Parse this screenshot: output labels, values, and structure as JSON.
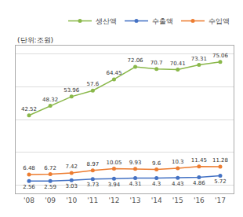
{
  "chart_data": {
    "type": "line",
    "ylabel": "(단위:조원)",
    "categories": [
      "'08",
      "'09",
      "'10",
      "'11",
      "'12",
      "'13",
      "'14",
      "'15",
      "'16",
      "'17"
    ],
    "series": [
      {
        "name": "생산액",
        "color": "#8ab84a",
        "marker": "circle",
        "values": [
          42.52,
          48.32,
          53.96,
          57.6,
          64.45,
          72.06,
          70.7,
          70.41,
          73.31,
          75.06
        ]
      },
      {
        "name": "수출액",
        "color": "#4472c4",
        "marker": "circle",
        "values": [
          2.56,
          2.59,
          3.03,
          3.73,
          3.94,
          4.31,
          4.3,
          4.43,
          4.86,
          5.72
        ]
      },
      {
        "name": "수입액",
        "color": "#ed7d31",
        "marker": "circle",
        "values": [
          6.48,
          6.72,
          7.42,
          8.97,
          10.05,
          9.93,
          9.6,
          10.3,
          11.45,
          11.28
        ]
      }
    ],
    "ylim": [
      -5,
      85
    ],
    "yticks": [
      0,
      20,
      40,
      60,
      80
    ],
    "grid": true,
    "legend": "upper right",
    "data_labels": true,
    "tick_labels": "x"
  }
}
